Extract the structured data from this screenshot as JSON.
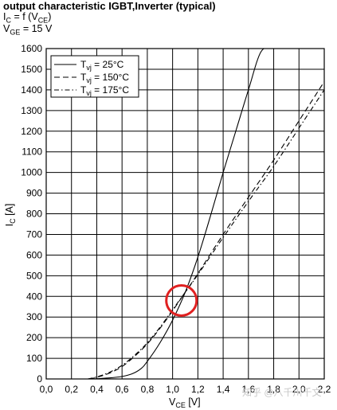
{
  "header": {
    "title": "output characteristic IGBT,Inverter (typical)",
    "line2_prefix": "I",
    "line2_sub": "C",
    "line2_mid": " = f (V",
    "line2_sub2": "CE",
    "line2_suffix": ")",
    "line3_prefix": "V",
    "line3_sub": "GE",
    "line3_suffix": " = 15 V"
  },
  "watermark": "知乎 @八千川千文",
  "chart_data": {
    "type": "line",
    "title": "output characteristic IGBT,Inverter (typical)",
    "xlabel_main": "V",
    "xlabel_sub": "CE",
    "xlabel_unit": " [V]",
    "ylabel_main": "I",
    "ylabel_sub": "C",
    "ylabel_unit": " [A]",
    "xlim": [
      0,
      2.2
    ],
    "ylim": [
      0,
      1600
    ],
    "x_ticks": [
      "0,0",
      "0,2",
      "0,4",
      "0,6",
      "0,8",
      "1,0",
      "1,2",
      "1,4",
      "1,6",
      "1,8",
      "2,0",
      "2,2"
    ],
    "y_ticks": [
      "0",
      "100",
      "200",
      "300",
      "400",
      "500",
      "600",
      "700",
      "800",
      "900",
      "1000",
      "1100",
      "1200",
      "1300",
      "1400",
      "1500",
      "1600"
    ],
    "grid": true,
    "legend_position": "top-left",
    "series": [
      {
        "name_main": "T",
        "name_sub": "vj",
        "name_tail": " = 25°C",
        "dash": "solid",
        "x": [
          0.36,
          0.5,
          0.6,
          0.68,
          0.75,
          0.8,
          0.9,
          1.0,
          1.1,
          1.2,
          1.3,
          1.4,
          1.5,
          1.6,
          1.7,
          1.8,
          1.87
        ],
        "y": [
          0,
          5,
          12,
          25,
          50,
          85,
          175,
          285,
          420,
          590,
          790,
          1000,
          1200,
          1400,
          1585,
          1600,
          1600
        ]
      },
      {
        "name_main": "T",
        "name_sub": "vj",
        "name_tail": " = 150°C",
        "dash": "long-dash",
        "x": [
          0.34,
          0.4,
          0.5,
          0.6,
          0.7,
          0.8,
          0.9,
          1.0,
          1.1,
          1.2,
          1.4,
          1.6,
          1.8,
          2.0,
          2.2
        ],
        "y": [
          0,
          8,
          28,
          60,
          110,
          170,
          245,
          330,
          420,
          510,
          700,
          880,
          1060,
          1250,
          1440
        ]
      },
      {
        "name_main": "T",
        "name_sub": "vj",
        "name_tail": " = 175°C",
        "dash": "dash-dot",
        "x": [
          0.33,
          0.4,
          0.5,
          0.6,
          0.7,
          0.8,
          0.9,
          1.0,
          1.1,
          1.2,
          1.4,
          1.6,
          1.8,
          2.0,
          2.2
        ],
        "y": [
          0,
          10,
          32,
          66,
          115,
          175,
          250,
          335,
          420,
          505,
          685,
          860,
          1030,
          1215,
          1400
        ]
      }
    ],
    "annotation": {
      "type": "circle",
      "color": "#e02020",
      "x": 1.07,
      "y": 380
    }
  }
}
